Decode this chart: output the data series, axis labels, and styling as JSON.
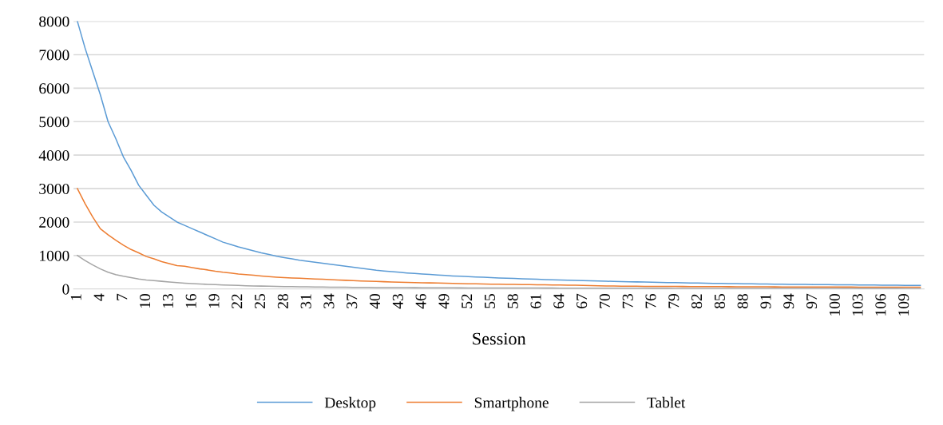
{
  "chart_data": {
    "type": "line",
    "xlabel": "Session",
    "categories": [
      "1",
      null,
      null,
      "4",
      null,
      null,
      "7",
      null,
      null,
      "10",
      null,
      null,
      "13",
      null,
      null,
      "16",
      null,
      null,
      "19",
      null,
      null,
      "22",
      null,
      null,
      "25",
      null,
      null,
      "28",
      null,
      null,
      "31",
      null,
      null,
      "34",
      null,
      null,
      "37",
      null,
      null,
      "40",
      null,
      null,
      "43",
      null,
      null,
      "46",
      null,
      null,
      "49",
      null,
      null,
      "52",
      null,
      null,
      "55",
      null,
      null,
      "58",
      null,
      null,
      "61",
      null,
      null,
      "64",
      null,
      null,
      "67",
      null,
      null,
      "70",
      null,
      null,
      "73",
      null,
      null,
      "76",
      null,
      null,
      "79",
      null,
      null,
      "82",
      null,
      null,
      "85",
      null,
      null,
      "88",
      null,
      null,
      "91",
      null,
      null,
      "94",
      null,
      null,
      "97",
      null,
      null,
      "100",
      null,
      null,
      "103",
      null,
      null,
      "106",
      null,
      null,
      "109",
      null,
      null
    ],
    "series": [
      {
        "name": "Desktop",
        "color": "#5b9bd5",
        "values": [
          8000,
          7200,
          6500,
          5800,
          5000,
          4500,
          3950,
          3550,
          3100,
          2800,
          2500,
          2300,
          2150,
          2000,
          1900,
          1800,
          1700,
          1600,
          1500,
          1400,
          1330,
          1260,
          1200,
          1140,
          1080,
          1030,
          980,
          940,
          900,
          860,
          830,
          800,
          770,
          740,
          710,
          680,
          650,
          620,
          590,
          560,
          540,
          520,
          500,
          480,
          465,
          450,
          435,
          420,
          405,
          390,
          380,
          370,
          360,
          350,
          340,
          330,
          322,
          314,
          306,
          298,
          290,
          283,
          276,
          269,
          262,
          256,
          250,
          244,
          238,
          232,
          227,
          222,
          217,
          212,
          207,
          202,
          197,
          193,
          189,
          185,
          181,
          177,
          173,
          169,
          166,
          163,
          160,
          157,
          154,
          151,
          148,
          145,
          142,
          140,
          138,
          136,
          134,
          132,
          130,
          128,
          126,
          124,
          122,
          120,
          118,
          116,
          114,
          112,
          110,
          108,
          106
        ]
      },
      {
        "name": "Smartphone",
        "color": "#ed7d31",
        "values": [
          3000,
          2550,
          2150,
          1800,
          1620,
          1460,
          1310,
          1180,
          1080,
          970,
          900,
          820,
          760,
          700,
          680,
          640,
          600,
          570,
          530,
          500,
          480,
          450,
          430,
          410,
          390,
          370,
          355,
          340,
          330,
          320,
          310,
          300,
          290,
          280,
          270,
          260,
          250,
          240,
          232,
          225,
          218,
          211,
          205,
          199,
          193,
          187,
          182,
          177,
          172,
          167,
          162,
          158,
          154,
          150,
          146,
          142,
          138,
          135,
          132,
          129,
          126,
          123,
          120,
          117,
          114,
          111,
          108,
          100,
          95,
          90,
          88,
          86,
          84,
          82,
          80,
          79,
          78,
          77,
          76,
          75,
          74,
          73,
          72,
          71,
          70,
          69,
          68,
          67,
          66,
          65,
          64,
          63,
          62,
          61,
          60,
          60,
          59,
          59,
          58,
          58,
          57,
          57,
          56,
          56,
          55,
          55,
          54,
          54,
          53,
          53,
          52
        ]
      },
      {
        "name": "Tablet",
        "color": "#a5a5a5",
        "values": [
          1000,
          850,
          720,
          600,
          500,
          430,
          380,
          340,
          300,
          270,
          250,
          230,
          210,
          190,
          175,
          160,
          150,
          140,
          130,
          120,
          112,
          105,
          98,
          92,
          87,
          82,
          78,
          74,
          70,
          67,
          64,
          61,
          58,
          56,
          54,
          52,
          50,
          48,
          46,
          44,
          43,
          42,
          41,
          40,
          39,
          38,
          37,
          36,
          35,
          34,
          33,
          32,
          32,
          31,
          31,
          30,
          30,
          29,
          29,
          28,
          28,
          27,
          27,
          26,
          26,
          25,
          25,
          24,
          24,
          23,
          23,
          23,
          22,
          22,
          22,
          21,
          21,
          21,
          20,
          20,
          20,
          20,
          19,
          19,
          19,
          19,
          18,
          18,
          18,
          18,
          18,
          17,
          17,
          17,
          17,
          17,
          16,
          16,
          16,
          16,
          16,
          16,
          15,
          15,
          15,
          15,
          15,
          15,
          14,
          14,
          14
        ]
      }
    ],
    "ylim": [
      0,
      8000
    ],
    "yticks": [
      0,
      1000,
      2000,
      3000,
      4000,
      5000,
      6000,
      7000,
      8000
    ],
    "grid": "y",
    "legend": "bottom",
    "marker": "none",
    "line_style": "solid"
  }
}
